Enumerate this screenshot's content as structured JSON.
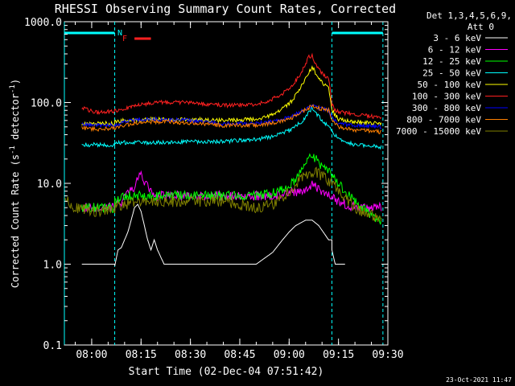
{
  "chart_data": {
    "type": "line",
    "title": "RHESSI Observing Summary Count Rates, Corrected",
    "xlabel": "Start Time (02-Dec-04 07:51:42)",
    "ylabel": "Corrected Count Rate (s⁻¹ detector⁻¹)",
    "ylabel_main": "Corrected Count Rate (s",
    "ylabel_sup1": "-1",
    "ylabel_mid": " detector",
    "ylabel_sup2": "-1",
    "ylabel_end": ")",
    "y_scale": "log",
    "ylim": [
      0.1,
      1000
    ],
    "xlim": [
      "07:51:42",
      "09:30:00"
    ],
    "y_ticks": [
      "0.1",
      "1.0",
      "10.0",
      "100.0",
      "1000.0"
    ],
    "x_ticks": [
      "08:00",
      "08:15",
      "08:30",
      "08:45",
      "09:00",
      "09:15",
      "09:30"
    ],
    "legend_title": [
      "Det 1,3,4,5,6,9,",
      "Att 0"
    ],
    "flag_labels": [
      "N",
      "F"
    ],
    "footer_date": "23-Oct-2021 11:47",
    "night_intervals": [
      [
        "07:51:42",
        "08:07:00"
      ],
      [
        "09:13:00",
        "09:28:30"
      ]
    ],
    "flare_marker": {
      "start": "08:13",
      "end": "08:18"
    },
    "series": [
      {
        "name": "3 - 6 keV",
        "color": "#ffffff",
        "t": [
          "07:57",
          "08:07",
          "08:07",
          "08:08",
          "08:09",
          "08:10",
          "08:11",
          "08:12",
          "08:13",
          "08:14",
          "08:15",
          "08:16",
          "08:17",
          "08:18",
          "08:19",
          "08:20",
          "08:22",
          "08:25",
          "08:30",
          "08:40",
          "08:50",
          "08:55",
          "08:58",
          "09:00",
          "09:02",
          "09:05",
          "09:07",
          "09:09",
          "09:12",
          "09:13",
          "09:13",
          "09:14",
          "09:17"
        ],
        "v": [
          1,
          1,
          0.95,
          1.5,
          1.6,
          2,
          2.5,
          3.5,
          5,
          5.5,
          4.5,
          3,
          2,
          1.5,
          2,
          1.5,
          1,
          1,
          1,
          1,
          1,
          1.4,
          2,
          2.5,
          3,
          3.5,
          3.5,
          3,
          2,
          2,
          1.5,
          1,
          1
        ]
      },
      {
        "name": "6 - 12 keV",
        "color": "#ff00ff",
        "t": [
          "07:57",
          "08:00",
          "08:05",
          "08:07",
          "08:08",
          "08:09",
          "08:10",
          "08:12",
          "08:13",
          "08:14",
          "08:15",
          "08:16",
          "08:18",
          "08:20",
          "08:25",
          "08:30",
          "08:40",
          "08:50",
          "08:55",
          "09:00",
          "09:05",
          "09:07",
          "09:09",
          "09:12",
          "09:13",
          "09:15",
          "09:20",
          "09:28"
        ],
        "v": [
          5,
          5,
          5,
          5,
          5.5,
          5.5,
          6.5,
          8,
          9,
          12,
          13,
          10,
          8,
          7,
          7,
          7,
          7,
          7,
          7,
          7.5,
          8.5,
          9.5,
          8.5,
          7.5,
          6.5,
          6,
          5,
          5
        ]
      },
      {
        "name": "12 - 25 keV",
        "color": "#00ff00",
        "t": [
          "07:57",
          "08:07",
          "08:07",
          "08:10",
          "08:12",
          "08:15",
          "08:20",
          "08:30",
          "08:40",
          "08:50",
          "08:55",
          "09:00",
          "09:03",
          "09:05",
          "09:07",
          "09:09",
          "09:12",
          "09:14",
          "09:17",
          "09:20",
          "09:25",
          "09:28"
        ],
        "v": [
          5,
          5,
          6,
          7,
          7,
          7,
          7,
          7,
          7,
          7,
          7.5,
          9,
          13,
          18,
          22,
          18,
          14,
          11,
          8,
          6,
          4,
          3.5
        ]
      },
      {
        "name": "25 - 50 keV",
        "color": "#00ffff",
        "t": [
          "07:57",
          "08:07",
          "08:07",
          "08:10",
          "08:20",
          "08:30",
          "08:40",
          "08:50",
          "08:55",
          "09:00",
          "09:03",
          "09:05",
          "09:07",
          "09:08",
          "09:10",
          "09:12",
          "09:13",
          "09:15",
          "09:20",
          "09:28"
        ],
        "v": [
          30,
          30,
          32,
          32,
          32,
          33,
          33,
          35,
          38,
          45,
          55,
          65,
          85,
          75,
          60,
          50,
          45,
          35,
          30,
          28
        ]
      },
      {
        "name": "50 - 100 keV",
        "color": "#ffff00",
        "t": [
          "07:57",
          "08:07",
          "08:07",
          "08:10",
          "08:20",
          "08:30",
          "08:40",
          "08:50",
          "08:55",
          "09:00",
          "09:03",
          "09:05",
          "09:07",
          "09:08",
          "09:10",
          "09:12",
          "09:13",
          "09:15",
          "09:20",
          "09:28"
        ],
        "v": [
          55,
          55,
          58,
          60,
          62,
          62,
          60,
          62,
          70,
          95,
          140,
          200,
          280,
          230,
          175,
          150,
          80,
          62,
          58,
          55
        ]
      },
      {
        "name": "100 - 300 keV",
        "color": "#ff2020",
        "t": [
          "07:57",
          "08:02",
          "08:07",
          "08:10",
          "08:15",
          "08:20",
          "08:30",
          "08:40",
          "08:50",
          "08:55",
          "09:00",
          "09:03",
          "09:05",
          "09:06",
          "09:07",
          "09:08",
          "09:10",
          "09:12",
          "09:13",
          "09:14",
          "09:16",
          "09:20",
          "09:28"
        ],
        "v": [
          85,
          75,
          78,
          85,
          95,
          100,
          100,
          92,
          95,
          110,
          145,
          210,
          300,
          370,
          380,
          300,
          230,
          200,
          95,
          80,
          75,
          72,
          65
        ]
      },
      {
        "name": "300 - 800 keV",
        "color": "#0000ff",
        "t": [
          "07:57",
          "08:02",
          "08:07",
          "08:10",
          "08:15",
          "08:20",
          "08:30",
          "08:40",
          "08:50",
          "08:55",
          "09:00",
          "09:03",
          "09:05",
          "09:07",
          "09:09",
          "09:12",
          "09:13",
          "09:15",
          "09:20",
          "09:28"
        ],
        "v": [
          55,
          52,
          52,
          58,
          62,
          62,
          60,
          55,
          55,
          58,
          65,
          75,
          85,
          90,
          85,
          80,
          65,
          55,
          52,
          50
        ]
      },
      {
        "name": "800 - 7000 keV",
        "color": "#ff8000",
        "t": [
          "07:57",
          "08:02",
          "08:07",
          "08:10",
          "08:15",
          "08:20",
          "08:30",
          "08:40",
          "08:50",
          "08:55",
          "09:00",
          "09:03",
          "09:05",
          "09:07",
          "09:09",
          "09:12",
          "09:13",
          "09:15",
          "09:20",
          "09:28"
        ],
        "v": [
          48,
          47,
          48,
          52,
          58,
          58,
          56,
          52,
          52,
          56,
          62,
          72,
          82,
          90,
          85,
          80,
          60,
          50,
          46,
          43
        ]
      },
      {
        "name": "7000 - 15000 keV",
        "color": "#808000",
        "t": [
          "07:51:42",
          "07:53",
          "07:55",
          "08:00",
          "08:05",
          "08:07",
          "08:10",
          "08:15",
          "08:20",
          "08:30",
          "08:40",
          "08:50",
          "08:55",
          "09:00",
          "09:03",
          "09:05",
          "09:07",
          "09:09",
          "09:12",
          "09:15",
          "09:20",
          "09:25",
          "09:28"
        ],
        "v": [
          7,
          6,
          5,
          4.5,
          4.5,
          5,
          5.5,
          6,
          6,
          6,
          6,
          5,
          5.5,
          8,
          11,
          13,
          14,
          13,
          11,
          8,
          5,
          4,
          3.5
        ]
      }
    ]
  }
}
